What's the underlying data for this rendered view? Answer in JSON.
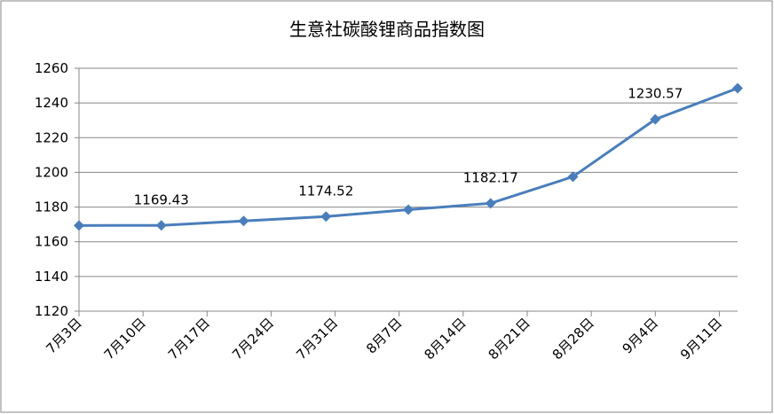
{
  "chart_data": {
    "type": "line",
    "title": "生意社碳酸锂商品指数图",
    "x": [
      0,
      9,
      18,
      27,
      36,
      45,
      54,
      63,
      72
    ],
    "series": [
      {
        "name": "碳酸锂商品指数",
        "color": "#4a7ebb",
        "values": [
          1169.4,
          1169.43,
          1172,
          1174.52,
          1178.5,
          1182.17,
          1197.5,
          1230.57,
          1248.5
        ],
        "value_labels": [
          null,
          "1169.43",
          null,
          "1174.52",
          null,
          "1182.17",
          null,
          "1230.57",
          null
        ]
      }
    ],
    "xlim": [
      0,
      72
    ],
    "xticks": [
      {
        "value": 0,
        "label": "7月3日"
      },
      {
        "value": 7,
        "label": "7月10日"
      },
      {
        "value": 14,
        "label": "7月17日"
      },
      {
        "value": 21,
        "label": "7月24日"
      },
      {
        "value": 28,
        "label": "7月31日"
      },
      {
        "value": 35,
        "label": "8月7日"
      },
      {
        "value": 42,
        "label": "8月14日"
      },
      {
        "value": 49,
        "label": "8月21日"
      },
      {
        "value": 56,
        "label": "8月28日"
      },
      {
        "value": 63,
        "label": "9月4日"
      },
      {
        "value": 70,
        "label": "9月11日"
      }
    ],
    "ylim": [
      1120,
      1260
    ],
    "yticks": [
      1120,
      1140,
      1160,
      1180,
      1200,
      1220,
      1240,
      1260
    ],
    "grid": true
  }
}
